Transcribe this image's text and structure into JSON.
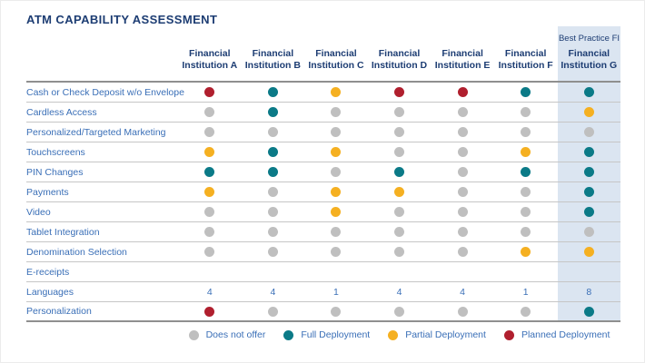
{
  "title": "ATM CAPABILITY ASSESSMENT",
  "best_practice_label": "Best Practice FI",
  "legend": [
    {
      "label": "Does not offer",
      "status": "none"
    },
    {
      "label": "Full Deployment",
      "status": "full"
    },
    {
      "label": "Partial Deployment",
      "status": "partial"
    },
    {
      "label": "Planned Deployment",
      "status": "planned"
    }
  ],
  "colors": {
    "none": "#bfbfbf",
    "full": "#0b7a87",
    "partial": "#f5b021",
    "planned": "#b01f2e",
    "highlight": "#dbe5f1",
    "navy": "#1d3d73",
    "blue": "#3a6fb7"
  },
  "chart_data": {
    "type": "table",
    "title": "ATM CAPABILITY ASSESSMENT",
    "columns": [
      "Financial Institution A",
      "Financial Institution B",
      "Financial Institution C",
      "Financial Institution D",
      "Financial Institution E",
      "Financial Institution F",
      "Financial Institution G"
    ],
    "best_practice_column": "Financial Institution G",
    "rows": [
      {
        "label": "Cash or Check Deposit w/o Envelope",
        "cells": [
          "planned",
          "full",
          "partial",
          "planned",
          "planned",
          "full",
          "full"
        ]
      },
      {
        "label": "Cardless Access",
        "cells": [
          "none",
          "full",
          "none",
          "none",
          "none",
          "none",
          "partial"
        ]
      },
      {
        "label": "Personalized/Targeted Marketing",
        "cells": [
          "none",
          "none",
          "none",
          "none",
          "none",
          "none",
          "none"
        ]
      },
      {
        "label": "Touchscreens",
        "cells": [
          "partial",
          "full",
          "partial",
          "none",
          "none",
          "partial",
          "full"
        ]
      },
      {
        "label": "PIN Changes",
        "cells": [
          "full",
          "full",
          "none",
          "full",
          "none",
          "full",
          "full"
        ]
      },
      {
        "label": "Payments",
        "cells": [
          "partial",
          "none",
          "partial",
          "partial",
          "none",
          "none",
          "full"
        ]
      },
      {
        "label": "Video",
        "cells": [
          "none",
          "none",
          "partial",
          "none",
          "none",
          "none",
          "full"
        ]
      },
      {
        "label": "Tablet Integration",
        "cells": [
          "none",
          "none",
          "none",
          "none",
          "none",
          "none",
          "none"
        ]
      },
      {
        "label": "Denomination Selection",
        "cells": [
          "none",
          "none",
          "none",
          "none",
          "none",
          "partial",
          "partial"
        ]
      },
      {
        "label": "E-receipts",
        "cells": [
          "",
          "",
          "",
          "",
          "",
          "",
          ""
        ]
      },
      {
        "label": "Languages",
        "cells": [
          "4",
          "4",
          "1",
          "4",
          "4",
          "1",
          "8"
        ]
      },
      {
        "label": "Personalization",
        "cells": [
          "planned",
          "none",
          "none",
          "none",
          "none",
          "none",
          "full"
        ]
      }
    ]
  }
}
